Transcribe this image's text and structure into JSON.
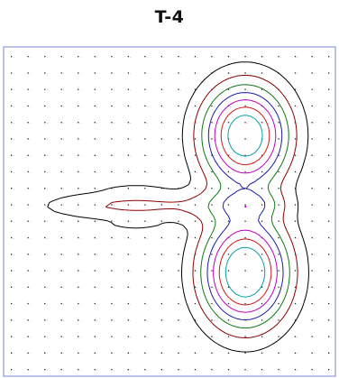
{
  "title": "T-4",
  "chart_data": {
    "type": "contour",
    "title": "T-4",
    "xlabel": "",
    "ylabel": "",
    "grid": false,
    "legend": "none",
    "colors": {
      "frame": "#7a86d6",
      "levels": [
        "#000000",
        "#8b0000",
        "#0a7a14",
        "#1a1aa8",
        "#c000c0",
        "#d01818",
        "#0aa0a0"
      ]
    },
    "sample_grid": {
      "columns": 20,
      "rows": 20
    },
    "levels": [
      1,
      2,
      3,
      4,
      5,
      6,
      7
    ],
    "field_description": "two peaks in the right half (upper and lower), with a horizontal ridge extending left through the middle"
  }
}
